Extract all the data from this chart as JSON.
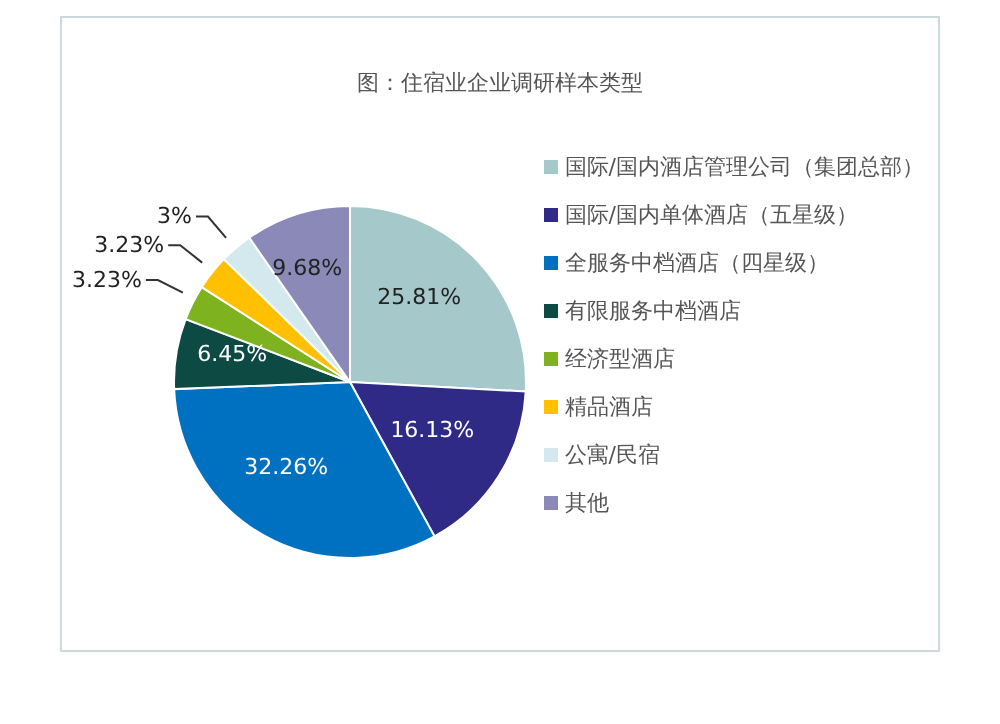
{
  "chart_data": {
    "type": "pie",
    "title": "图：住宿业企业调研样本类型",
    "categories": [
      "国际/国内酒店管理公司（集团总部）",
      "国际/国内单体酒店（五星级）",
      "全服务中档酒店（四星级）",
      "有限服务中档酒店",
      "经济型酒店",
      "精品酒店",
      "公寓/民宿",
      "其他"
    ],
    "values": [
      25.81,
      16.13,
      32.26,
      6.45,
      3.23,
      3.23,
      3,
      9.68
    ],
    "colors": [
      "#a5c8ca",
      "#2e2a86",
      "#0070c0",
      "#0e4a44",
      "#7fb21f",
      "#ffc000",
      "#d3e9ee",
      "#8b89b8"
    ],
    "value_labels": [
      "25.81%",
      "16.13%",
      "32.26%",
      "6.45%",
      "3.23%",
      "3.23%",
      "3%",
      "9.68%"
    ],
    "legend": "right"
  }
}
